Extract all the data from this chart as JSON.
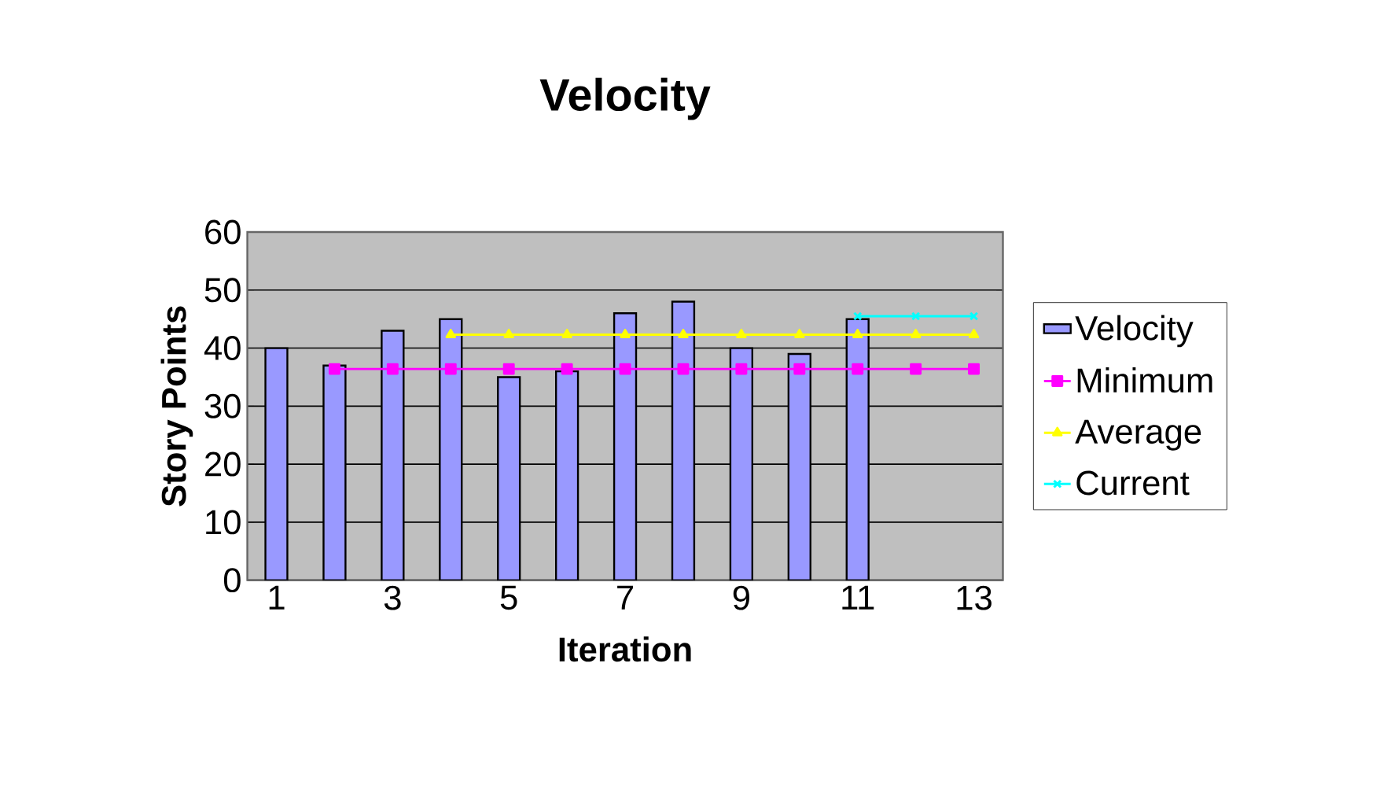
{
  "chart_data": {
    "type": "bar",
    "title": "Velocity",
    "xlabel": "Iteration",
    "ylabel": "Story Points",
    "categories": [
      "1",
      null,
      "3",
      null,
      "5",
      null,
      "7",
      null,
      "9",
      null,
      "11",
      null,
      "13"
    ],
    "series": [
      {
        "name": "Velocity",
        "color": "#9999ff",
        "values": [
          40,
          37,
          43,
          45,
          35,
          36,
          46,
          48,
          40,
          39,
          45,
          null,
          null
        ]
      },
      {
        "name": "Minimum",
        "type": "line",
        "color": "#ff00ff",
        "marker": "square",
        "values": [
          null,
          36.4,
          36.4,
          36.4,
          36.4,
          36.4,
          36.4,
          36.4,
          36.4,
          36.4,
          36.4,
          36.4,
          36.4
        ]
      },
      {
        "name": "Average",
        "type": "line",
        "color": "#ffff00",
        "marker": "triangle",
        "values": [
          null,
          null,
          null,
          42.3,
          42.3,
          42.3,
          42.3,
          42.3,
          42.3,
          42.3,
          42.3,
          42.3,
          42.3
        ]
      },
      {
        "name": "Current",
        "type": "line",
        "color": "#00ffff",
        "marker": "cross",
        "values": [
          null,
          null,
          null,
          null,
          null,
          null,
          null,
          null,
          null,
          null,
          45.5,
          45.5,
          45.5
        ]
      }
    ],
    "ylim": [
      0,
      60
    ],
    "yticks": [
      0,
      10,
      20,
      30,
      40,
      50,
      60
    ],
    "grid": "y",
    "legend": "right"
  }
}
